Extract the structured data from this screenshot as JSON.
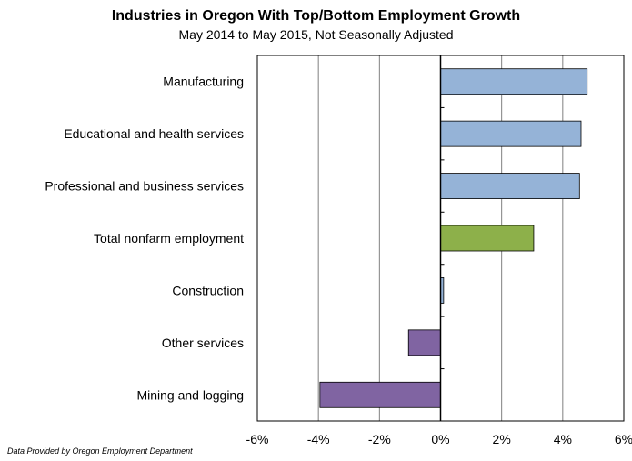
{
  "chart_data": {
    "type": "bar",
    "orientation": "horizontal",
    "title": "Industries in Oregon With Top/Bottom Employment Growth",
    "subtitle": "May 2014 to May 2015, Not Seasonally Adjusted",
    "source": "Data Provided by Oregon Employment Department",
    "categories": [
      "Manufacturing",
      "Educational and health services",
      "Professional and business services",
      "Total nonfarm employment",
      "Construction",
      "Other services",
      "Mining and logging"
    ],
    "values": [
      4.8,
      4.6,
      4.55,
      3.05,
      0.1,
      -1.05,
      -3.95
    ],
    "value_unit": "%",
    "xlim": [
      -6,
      6
    ],
    "xticks": [
      -6,
      -4,
      -2,
      0,
      2,
      4,
      6
    ],
    "xtick_labels": [
      "-6%",
      "-4%",
      "-2%",
      "0%",
      "2%",
      "4%",
      "6%"
    ],
    "grid": "vertical",
    "colors": {
      "positive": "#95b3d7",
      "total": "#8db04a",
      "negative": "#8064a2",
      "outline": "#000000",
      "grid": "#808080"
    },
    "bar_colors": [
      "positive",
      "positive",
      "positive",
      "total",
      "positive",
      "negative",
      "negative"
    ]
  }
}
